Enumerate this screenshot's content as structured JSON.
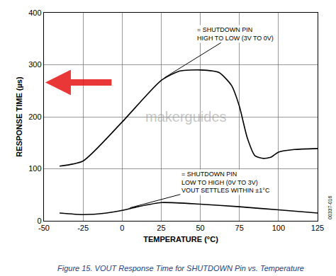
{
  "chart_data": {
    "type": "line",
    "title": "Figure 15. VOUT Response Time for SHUTDOWN Pin vs. Temperature",
    "x_label": "TEMPERATURE (°C)",
    "y_label": "RESPONSE TIME (µs)",
    "xlim": [
      -50,
      125
    ],
    "xticks": [
      -50,
      -25,
      0,
      25,
      50,
      75,
      100,
      125
    ],
    "ylim": [
      0,
      400
    ],
    "yticks": [
      0,
      100,
      200,
      300,
      400
    ],
    "grid": true,
    "series": [
      {
        "color": "#000000",
        "x": [
          -40,
          -25,
          0,
          25,
          37,
          50,
          62,
          70,
          75,
          80,
          85,
          90,
          95,
          100,
          110,
          125
        ],
        "values": [
          105,
          115,
          190,
          270,
          288,
          290,
          285,
          260,
          220,
          160,
          125,
          120,
          122,
          132,
          137,
          139
        ]
      },
      {
        "color": "#000000",
        "x": [
          -40,
          -25,
          -10,
          0,
          10,
          25,
          50,
          75,
          100,
          125
        ],
        "values": [
          15,
          12,
          15,
          20,
          27,
          35,
          32,
          27,
          21,
          15
        ]
      }
    ],
    "annotations": [
      {
        "text": [
          "= SHUTDOWN PIN",
          "HIGH TO LOW (3V TO 0V)"
        ],
        "x": 27,
        "y": 275
      },
      {
        "text": [
          "= SHUTDOWN PIN",
          "LOW TO HIGH (0V TO 3V)",
          "VOUT SETTLES WITHIN ±1°C"
        ],
        "x": 5,
        "y": 25
      }
    ],
    "watermark": "makerguides",
    "figure_id": "00337-016"
  }
}
